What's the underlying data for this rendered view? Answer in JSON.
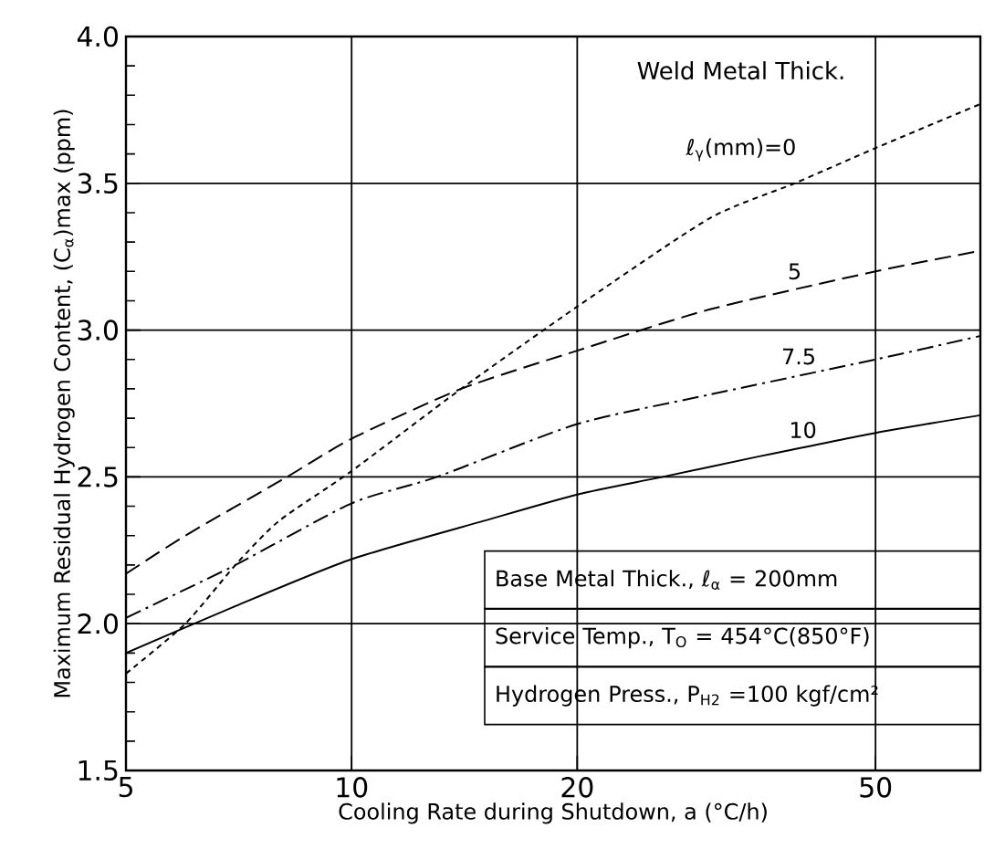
{
  "chart_data": {
    "type": "line",
    "xlabel": "Cooling Rate during Shutdown, a  (°C/h)",
    "ylabel": "Maximum Residual Hydrogen Content, (C$_{α}$)max (ppm)",
    "log": "x",
    "grid": true,
    "marker": "none",
    "xlim": [
      5,
      69
    ],
    "xticks": [
      5,
      10,
      20,
      50
    ],
    "ylim": [
      1.5,
      4.0
    ],
    "yticks": [
      {
        "value": 1.5,
        "label": "1.5"
      },
      {
        "value": 2.0,
        "label": "2.0"
      },
      {
        "value": 2.5,
        "label": "2.5"
      },
      {
        "value": 3.0,
        "label": "3.0"
      },
      {
        "value": 3.5,
        "label": "3.5"
      },
      {
        "value": 4.0,
        "label": "4.0"
      }
    ],
    "series": [
      {
        "color": "#000000",
        "line_style": "dotted",
        "x": [
          5,
          6,
          7,
          8,
          10,
          14,
          20,
          30,
          39,
          50,
          69
        ],
        "values": [
          1.83,
          2.0,
          2.2,
          2.35,
          2.52,
          2.8,
          3.08,
          3.38,
          3.5,
          3.62,
          3.77
        ]
      },
      {
        "color": "#000000",
        "line_style": "dashed",
        "x": [
          5,
          6,
          8.2,
          10,
          14,
          20,
          30,
          50,
          69
        ],
        "values": [
          2.17,
          2.3,
          2.5,
          2.63,
          2.8,
          2.93,
          3.07,
          3.2,
          3.27
        ]
      },
      {
        "color": "#000000",
        "line_style": "dashdot",
        "x": [
          5,
          7,
          10,
          13,
          20,
          30,
          50,
          69
        ],
        "values": [
          2.02,
          2.2,
          2.41,
          2.5,
          2.68,
          2.78,
          2.9,
          2.98
        ]
      },
      {
        "color": "#000000",
        "line_style": "solid",
        "x": [
          5,
          7,
          10,
          15,
          20,
          26,
          35,
          50,
          69
        ],
        "values": [
          1.9,
          2.06,
          2.22,
          2.35,
          2.44,
          2.5,
          2.57,
          2.65,
          2.71
        ]
      }
    ],
    "annotations": [
      "Weld Metal Thick.",
      "ℓ$_{γ}$(mm)=0",
      {
        "text": "5",
        "x": 39,
        "y": 3.2
      },
      {
        "text": "7.5",
        "x": 39.5,
        "y": 2.91
      },
      {
        "text": "10",
        "x": 40,
        "y": 2.66
      },
      "Base Metal Thick., ℓ$_{α}$ = 200mm",
      "Service Temp., T$_{O}$ = 454°C(850°F)",
      "Hydrogen Press., P$_{H2}$ =100 kgf/cm²"
    ]
  }
}
